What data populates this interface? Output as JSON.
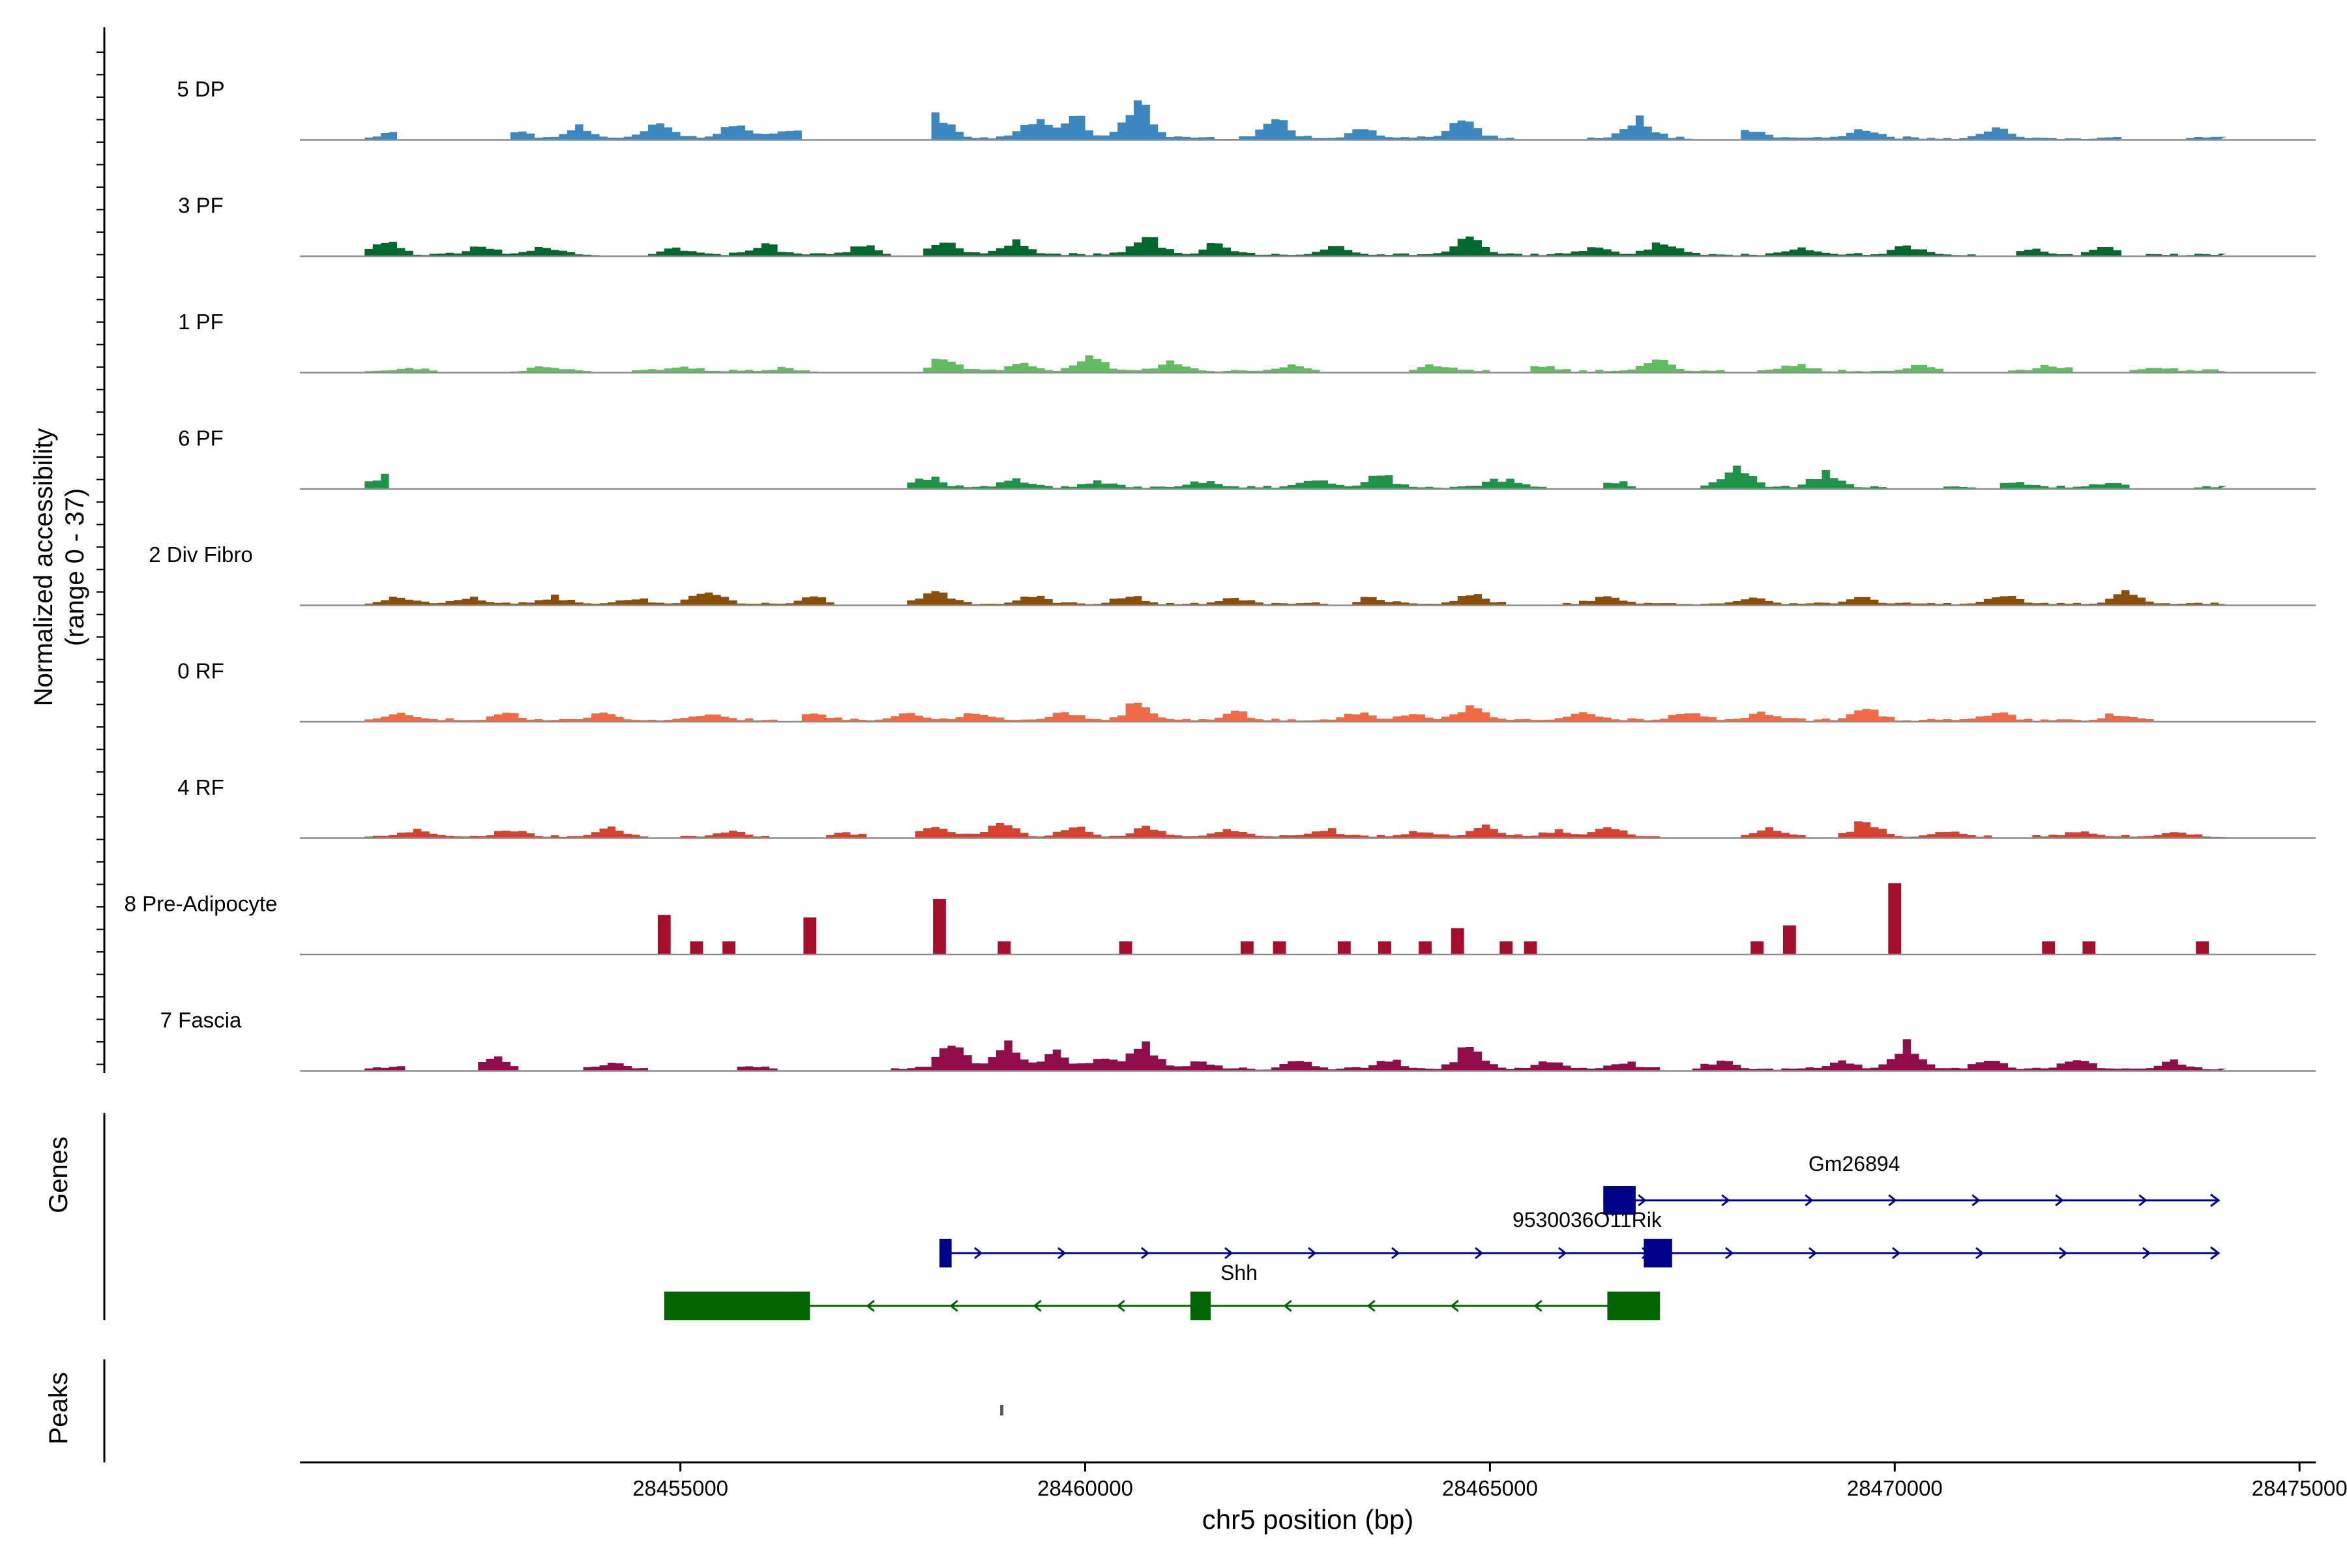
{
  "chart_data": {
    "type": "area",
    "title": "",
    "ylabel_line1": "Normalized accessibility",
    "ylabel_line2": "(range 0 - 37)",
    "yrange": [
      0,
      37
    ],
    "xlabel": "chr5 position (bp)",
    "xlim": [
      28450300,
      28475200
    ],
    "x_ticks": [
      28455000,
      28460000,
      28465000,
      28470000,
      28475000
    ],
    "x_tick_labels": [
      "28455000",
      "28460000",
      "28465000",
      "28470000",
      "28475000"
    ],
    "track_start": 28451100,
    "track_end": 28474000,
    "bin_size": 100,
    "tracks": [
      {
        "name": "5 DP",
        "color": "#3A87C1",
        "peaks": [
          {
            "pos": 28451400,
            "height": 2
          },
          {
            "pos": 28452900,
            "height": 2.5
          },
          {
            "pos": 28453700,
            "height": 4
          },
          {
            "pos": 28454700,
            "height": 5.5
          },
          {
            "pos": 28455600,
            "height": 5.5
          },
          {
            "pos": 28456300,
            "height": 4
          },
          {
            "pos": 28458100,
            "height": 9
          },
          {
            "pos": 28459300,
            "height": 6
          },
          {
            "pos": 28459800,
            "height": 8
          },
          {
            "pos": 28460600,
            "height": 14
          },
          {
            "pos": 28462300,
            "height": 7
          },
          {
            "pos": 28463400,
            "height": 4
          },
          {
            "pos": 28464600,
            "height": 6
          },
          {
            "pos": 28466800,
            "height": 7
          },
          {
            "pos": 28468200,
            "height": 3
          },
          {
            "pos": 28469600,
            "height": 3
          },
          {
            "pos": 28471200,
            "height": 3
          },
          {
            "pos": 28473000,
            "height": 1.5
          }
        ],
        "gaps": [
          [
            28451500,
            28452800
          ],
          [
            28456500,
            28458000
          ],
          [
            28465300,
            28466100
          ],
          [
            28467500,
            28468000
          ],
          [
            28472800,
            28473500
          ]
        ]
      },
      {
        "name": "3 PF",
        "color": "#00692E",
        "peaks": [
          {
            "pos": 28451300,
            "height": 5
          },
          {
            "pos": 28452500,
            "height": 3
          },
          {
            "pos": 28453300,
            "height": 3
          },
          {
            "pos": 28454900,
            "height": 2
          },
          {
            "pos": 28456000,
            "height": 3.5
          },
          {
            "pos": 28457200,
            "height": 3
          },
          {
            "pos": 28458200,
            "height": 5
          },
          {
            "pos": 28459100,
            "height": 5
          },
          {
            "pos": 28460700,
            "height": 7
          },
          {
            "pos": 28461600,
            "height": 4
          },
          {
            "pos": 28463100,
            "height": 3
          },
          {
            "pos": 28464700,
            "height": 5.5
          },
          {
            "pos": 28466300,
            "height": 3
          },
          {
            "pos": 28467100,
            "height": 5
          },
          {
            "pos": 28468800,
            "height": 3
          },
          {
            "pos": 28470100,
            "height": 3
          },
          {
            "pos": 28471700,
            "height": 2
          },
          {
            "pos": 28472600,
            "height": 2.5
          }
        ],
        "gaps": [
          [
            28454000,
            28454500
          ],
          [
            28457600,
            28457900
          ],
          [
            28471000,
            28471400
          ],
          [
            28472800,
            28473000
          ]
        ]
      },
      {
        "name": "1 PF",
        "color": "#63BC62",
        "peaks": [
          {
            "pos": 28451600,
            "height": 1
          },
          {
            "pos": 28453300,
            "height": 1.5
          },
          {
            "pos": 28455000,
            "height": 1.2
          },
          {
            "pos": 28456200,
            "height": 1
          },
          {
            "pos": 28458200,
            "height": 4
          },
          {
            "pos": 28459200,
            "height": 3
          },
          {
            "pos": 28460000,
            "height": 5
          },
          {
            "pos": 28461000,
            "height": 3
          },
          {
            "pos": 28462500,
            "height": 2
          },
          {
            "pos": 28464300,
            "height": 2
          },
          {
            "pos": 28465600,
            "height": 1.5
          },
          {
            "pos": 28467000,
            "height": 4
          },
          {
            "pos": 28468700,
            "height": 2
          },
          {
            "pos": 28470300,
            "height": 2
          },
          {
            "pos": 28471900,
            "height": 2
          },
          {
            "pos": 28473200,
            "height": 1
          }
        ],
        "gaps": [
          [
            28452000,
            28452800
          ],
          [
            28453900,
            28454300
          ],
          [
            28456700,
            28457900
          ],
          [
            28462900,
            28463900
          ],
          [
            28465000,
            28465400
          ],
          [
            28467900,
            28468200
          ],
          [
            28470600,
            28471300
          ],
          [
            28472200,
            28472800
          ]
        ]
      },
      {
        "name": "6 PF",
        "color": "#1D944A",
        "peaks": [
          {
            "pos": 28451250,
            "height": 4
          },
          {
            "pos": 28458000,
            "height": 4
          },
          {
            "pos": 28459100,
            "height": 2.5
          },
          {
            "pos": 28460100,
            "height": 2.5
          },
          {
            "pos": 28461400,
            "height": 2
          },
          {
            "pos": 28462800,
            "height": 3
          },
          {
            "pos": 28463600,
            "height": 4
          },
          {
            "pos": 28465100,
            "height": 3
          },
          {
            "pos": 28466500,
            "height": 2
          },
          {
            "pos": 28468000,
            "height": 7
          },
          {
            "pos": 28469100,
            "height": 5
          },
          {
            "pos": 28470200,
            "height": 3
          },
          {
            "pos": 28471400,
            "height": 2.5
          },
          {
            "pos": 28472600,
            "height": 2
          }
        ],
        "gaps": [
          [
            28451400,
            28457700
          ],
          [
            28465700,
            28466300
          ],
          [
            28466800,
            28467500
          ],
          [
            28469900,
            28470500
          ],
          [
            28471000,
            28471200
          ],
          [
            28472900,
            28473600
          ]
        ]
      },
      {
        "name": "2 Div Fibro",
        "color": "#8B4F0A",
        "peaks": [
          {
            "pos": 28451500,
            "height": 2
          },
          {
            "pos": 28452300,
            "height": 2
          },
          {
            "pos": 28453400,
            "height": 2.5
          },
          {
            "pos": 28454400,
            "height": 2
          },
          {
            "pos": 28455300,
            "height": 5
          },
          {
            "pos": 28456600,
            "height": 2
          },
          {
            "pos": 28458100,
            "height": 6
          },
          {
            "pos": 28459300,
            "height": 3
          },
          {
            "pos": 28460500,
            "height": 3
          },
          {
            "pos": 28461800,
            "height": 2
          },
          {
            "pos": 28463500,
            "height": 2
          },
          {
            "pos": 28464700,
            "height": 3
          },
          {
            "pos": 28466400,
            "height": 3
          },
          {
            "pos": 28468200,
            "height": 2
          },
          {
            "pos": 28469500,
            "height": 2.5
          },
          {
            "pos": 28471300,
            "height": 3.5
          },
          {
            "pos": 28472800,
            "height": 4
          }
        ],
        "gaps": [
          [
            28456900,
            28457700
          ],
          [
            28463000,
            28463200
          ],
          [
            28465200,
            28465800
          ]
        ]
      },
      {
        "name": "0 RF",
        "color": "#EF6A45",
        "peaks": [
          {
            "pos": 28451500,
            "height": 2
          },
          {
            "pos": 28452800,
            "height": 2
          },
          {
            "pos": 28454000,
            "height": 2
          },
          {
            "pos": 28455300,
            "height": 2
          },
          {
            "pos": 28456600,
            "height": 2
          },
          {
            "pos": 28457800,
            "height": 2.5
          },
          {
            "pos": 28458600,
            "height": 3
          },
          {
            "pos": 28459700,
            "height": 3
          },
          {
            "pos": 28460600,
            "height": 6
          },
          {
            "pos": 28461800,
            "height": 3
          },
          {
            "pos": 28463300,
            "height": 3
          },
          {
            "pos": 28464000,
            "height": 2.5
          },
          {
            "pos": 28464700,
            "height": 5
          },
          {
            "pos": 28466100,
            "height": 3
          },
          {
            "pos": 28467400,
            "height": 3
          },
          {
            "pos": 28468300,
            "height": 2.5
          },
          {
            "pos": 28469600,
            "height": 4.5
          },
          {
            "pos": 28471200,
            "height": 2.5
          },
          {
            "pos": 28472700,
            "height": 2
          }
        ],
        "gaps": [
          [
            28473200,
            28474000
          ],
          [
            28456200,
            28456400
          ]
        ]
      },
      {
        "name": "4 RF",
        "color": "#D8402F",
        "peaks": [
          {
            "pos": 28451700,
            "height": 2.5
          },
          {
            "pos": 28452900,
            "height": 2.5
          },
          {
            "pos": 28454100,
            "height": 3
          },
          {
            "pos": 28455600,
            "height": 2
          },
          {
            "pos": 28457000,
            "height": 1.5
          },
          {
            "pos": 28458100,
            "height": 3
          },
          {
            "pos": 28458900,
            "height": 5.5
          },
          {
            "pos": 28459800,
            "height": 3
          },
          {
            "pos": 28460700,
            "height": 4
          },
          {
            "pos": 28461700,
            "height": 2.5
          },
          {
            "pos": 28462900,
            "height": 3
          },
          {
            "pos": 28464100,
            "height": 2
          },
          {
            "pos": 28464900,
            "height": 3.5
          },
          {
            "pos": 28465800,
            "height": 2.5
          },
          {
            "pos": 28466400,
            "height": 4.5
          },
          {
            "pos": 28468400,
            "height": 2.5
          },
          {
            "pos": 28469600,
            "height": 5.5
          },
          {
            "pos": 28470600,
            "height": 2
          },
          {
            "pos": 28472200,
            "height": 2
          },
          {
            "pos": 28473400,
            "height": 1.5
          }
        ],
        "gaps": [
          [
            28454600,
            28454900
          ],
          [
            28456100,
            28456700
          ],
          [
            28457300,
            28457800
          ],
          [
            28467100,
            28468000
          ],
          [
            28468900,
            28469200
          ],
          [
            28471200,
            28471600
          ]
        ]
      },
      {
        "name": "8 Pre-Adipocyte",
        "color": "#A50F2D",
        "blocks": [
          {
            "pos": 28454800,
            "height": 15
          },
          {
            "pos": 28455200,
            "height": 5
          },
          {
            "pos": 28455600,
            "height": 5
          },
          {
            "pos": 28456600,
            "height": 14
          },
          {
            "pos": 28458200,
            "height": 21
          },
          {
            "pos": 28459000,
            "height": 5
          },
          {
            "pos": 28460500,
            "height": 5
          },
          {
            "pos": 28462000,
            "height": 5
          },
          {
            "pos": 28462400,
            "height": 5
          },
          {
            "pos": 28463200,
            "height": 5
          },
          {
            "pos": 28463700,
            "height": 5
          },
          {
            "pos": 28464200,
            "height": 5
          },
          {
            "pos": 28464600,
            "height": 10
          },
          {
            "pos": 28465200,
            "height": 5
          },
          {
            "pos": 28465500,
            "height": 5
          },
          {
            "pos": 28468300,
            "height": 5
          },
          {
            "pos": 28468700,
            "height": 11
          },
          {
            "pos": 28470000,
            "height": 27
          },
          {
            "pos": 28471900,
            "height": 5
          },
          {
            "pos": 28472400,
            "height": 5
          },
          {
            "pos": 28473800,
            "height": 5
          }
        ]
      },
      {
        "name": "7 Fascia",
        "color": "#900C4A",
        "peaks": [
          {
            "pos": 28451400,
            "height": 1
          },
          {
            "pos": 28452700,
            "height": 4
          },
          {
            "pos": 28454100,
            "height": 2
          },
          {
            "pos": 28455800,
            "height": 1.5
          },
          {
            "pos": 28458300,
            "height": 10
          },
          {
            "pos": 28459000,
            "height": 9
          },
          {
            "pos": 28459600,
            "height": 6
          },
          {
            "pos": 28460200,
            "height": 5
          },
          {
            "pos": 28460700,
            "height": 8
          },
          {
            "pos": 28461400,
            "height": 2.5
          },
          {
            "pos": 28462600,
            "height": 3
          },
          {
            "pos": 28463700,
            "height": 3.5
          },
          {
            "pos": 28464700,
            "height": 8
          },
          {
            "pos": 28465700,
            "height": 3
          },
          {
            "pos": 28466600,
            "height": 3
          },
          {
            "pos": 28467800,
            "height": 3
          },
          {
            "pos": 28469300,
            "height": 3
          },
          {
            "pos": 28470100,
            "height": 9
          },
          {
            "pos": 28471100,
            "height": 4
          },
          {
            "pos": 28472200,
            "height": 3
          },
          {
            "pos": 28473400,
            "height": 3
          }
        ],
        "gaps": [
          [
            28451600,
            28452400
          ],
          [
            28453000,
            28453700
          ],
          [
            28454600,
            28455600
          ],
          [
            28456200,
            28457500
          ],
          [
            28467100,
            28467400
          ]
        ]
      }
    ],
    "genes_label": "Genes",
    "genes": [
      {
        "name": "Gm26894",
        "strand": "+",
        "start": 28466400,
        "end": 28474000,
        "exons": [
          [
            28466400,
            28466800
          ]
        ],
        "color": "#00008B"
      },
      {
        "name": "9530036O11Rik",
        "strand": "+",
        "start": 28458200,
        "end": 28474000,
        "exons": [
          [
            28458200,
            28458350
          ],
          [
            28466900,
            28467250
          ]
        ],
        "color": "#00008B"
      },
      {
        "name": "Shh",
        "strand": "-",
        "start": 28454800,
        "end": 28467100,
        "exons": [
          [
            28454800,
            28456600
          ],
          [
            28461300,
            28461550
          ],
          [
            28466450,
            28467100
          ]
        ],
        "color": "#006400"
      }
    ],
    "peaks_label": "Peaks",
    "peak_regions": [
      {
        "start": 28458950,
        "end": 28458990
      }
    ]
  }
}
